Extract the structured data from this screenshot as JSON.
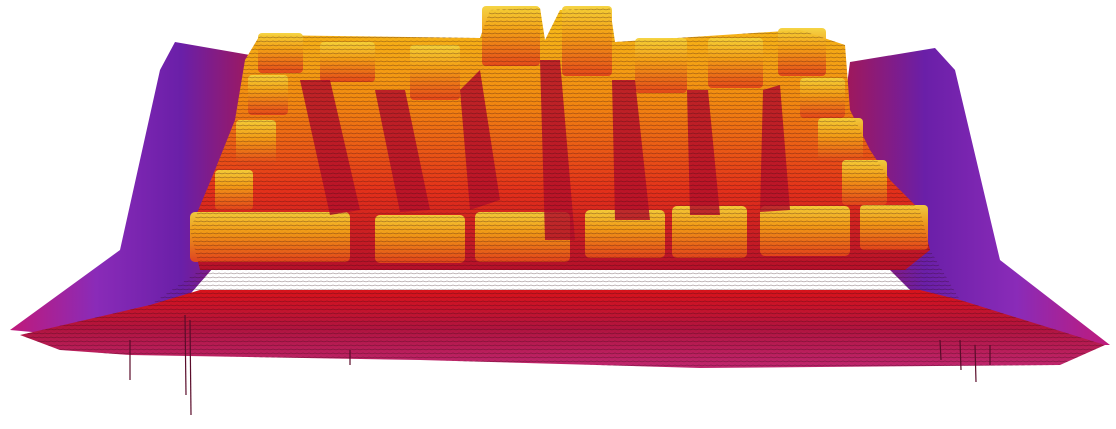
{
  "image": {
    "subject": "3d-surface-topography-render",
    "colors": {
      "background": "#ffffff",
      "base_purple": "#6a1fa8",
      "base_magenta": "#c01a7a",
      "mid_red": "#d8131a",
      "upper_orange": "#f26a0c",
      "peak_yellow": "#f7c21a",
      "edge_dark": "#3a0a12"
    }
  }
}
